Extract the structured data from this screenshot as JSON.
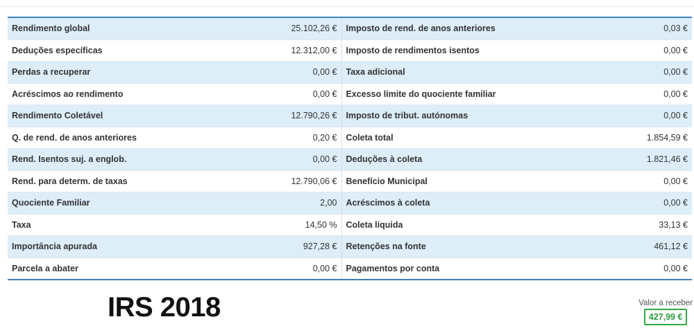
{
  "table": {
    "rows": [
      {
        "l_label": "Rendimento global",
        "l_value": "25.102,26 €",
        "r_label": "Imposto de rend. de anos anteriores",
        "r_value": "0,03 €"
      },
      {
        "l_label": "Deduções específicas",
        "l_value": "12.312,00 €",
        "r_label": "Imposto de rendimentos isentos",
        "r_value": "0,00 €"
      },
      {
        "l_label": "Perdas a recuperar",
        "l_value": "0,00 €",
        "r_label": "Taxa adicional",
        "r_value": "0,00 €"
      },
      {
        "l_label": "Acréscimos ao rendimento",
        "l_value": "0,00 €",
        "r_label": "Excesso limite do quociente familiar",
        "r_value": "0,00 €"
      },
      {
        "l_label": "Rendimento Coletável",
        "l_value": "12.790,26 €",
        "r_label": "Imposto de tribut. autónomas",
        "r_value": "0,00 €"
      },
      {
        "l_label": "Q. de rend. de anos anteriores",
        "l_value": "0,20 €",
        "r_label": "Coleta total",
        "r_value": "1.854,59 €"
      },
      {
        "l_label": "Rend. Isentos suj. a englob.",
        "l_value": "0,00 €",
        "r_label": "Deduções à coleta",
        "r_value": "1.821,46 €"
      },
      {
        "l_label": "Rend. para determ. de taxas",
        "l_value": "12.790,06 €",
        "r_label": "Benefício Municipal",
        "r_value": "0,00 €"
      },
      {
        "l_label": "Quociente Familiar",
        "l_value": "2,00",
        "r_label": "Acréscimos à coleta",
        "r_value": "0,00 €"
      },
      {
        "l_label": "Taxa",
        "l_value": "14,50 %",
        "r_label": "Coleta líquida",
        "r_value": "33,13 €"
      },
      {
        "l_label": "Importância apurada",
        "l_value": "927,28 €",
        "r_label": "Retenções na fonte",
        "r_value": "461,12 €"
      },
      {
        "l_label": "Parcela a abater",
        "l_value": "0,00 €",
        "r_label": "Pagamentos por conta",
        "r_value": "0,00 €"
      }
    ]
  },
  "footer": {
    "title": "IRS 2018",
    "result_label": "Valor a receber",
    "result_value": "427,99 €"
  },
  "colors": {
    "accent_border": "#3f7fc4",
    "row_stripe": "#ddeef9",
    "result_green": "#2eaa44"
  }
}
